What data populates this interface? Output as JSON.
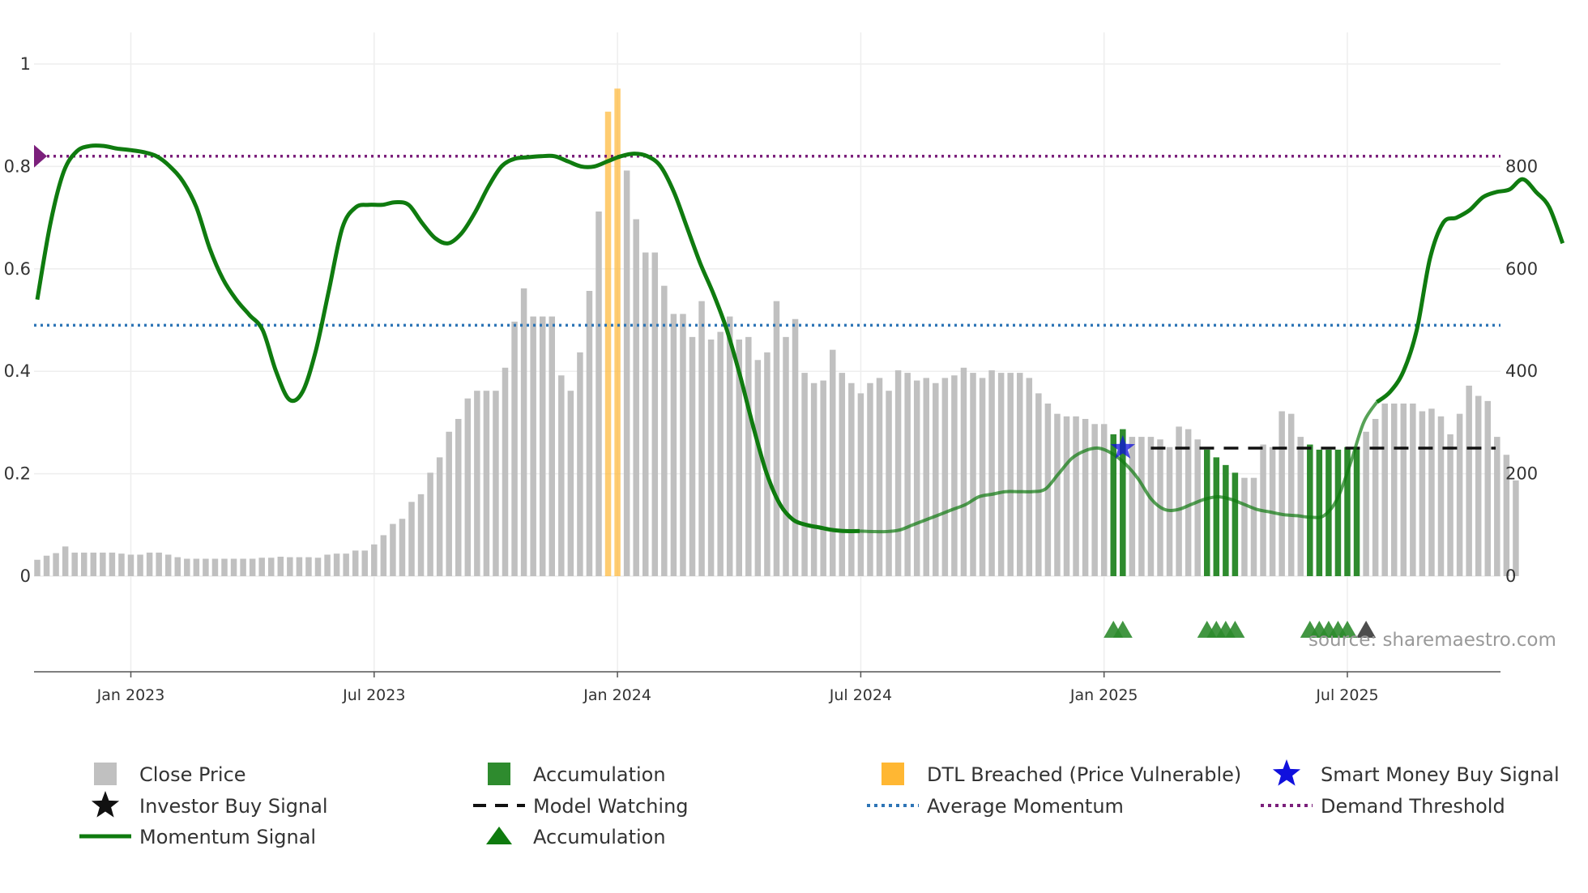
{
  "chart_data": {
    "type": "bar+line",
    "title": "",
    "source": "source: sharemaestro.com",
    "x_ticks": [
      "Jan 2023",
      "Jul 2023",
      "Jan 2024",
      "Jul 2024",
      "Jan 2025",
      "Jul 2025"
    ],
    "x_tick_weeks": [
      10,
      36,
      62,
      88,
      114,
      140
    ],
    "left_axis": {
      "range": [
        -0.19,
        1.0
      ],
      "ticks": [
        0,
        0.2,
        0.4,
        0.6,
        0.8,
        1
      ],
      "tick_labels": [
        "0",
        "0.2",
        "0.4",
        "0.6",
        "0.8",
        "1"
      ]
    },
    "right_axis": {
      "range": [
        -190,
        1000
      ],
      "ticks": [
        0,
        200,
        400,
        600,
        800
      ],
      "tick_labels": [
        "0",
        "200",
        "400",
        "600",
        "800"
      ]
    },
    "series": {
      "close_price": [
        32,
        40,
        45,
        58,
        46,
        46,
        46,
        46,
        46,
        44,
        42,
        42,
        46,
        46,
        42,
        37,
        34,
        34,
        34,
        34,
        34,
        34,
        34,
        34,
        36,
        36,
        38,
        37,
        37,
        37,
        36,
        42,
        44,
        44,
        50,
        50,
        62,
        80,
        102,
        112,
        145,
        160,
        202,
        232,
        282,
        307,
        347,
        362,
        362,
        362,
        407,
        497,
        562,
        507,
        507,
        507,
        392,
        362,
        437,
        557,
        712,
        907,
        952,
        792,
        697,
        632,
        632,
        567,
        512,
        512,
        467,
        537,
        462,
        477,
        507,
        462,
        467,
        422,
        437,
        537,
        467,
        502,
        397,
        377,
        382,
        442,
        397,
        377,
        357,
        377,
        387,
        362,
        402,
        397,
        382,
        387,
        377,
        387,
        392,
        407,
        397,
        387,
        402,
        397,
        397,
        397,
        387,
        357,
        337,
        317,
        312,
        312,
        307,
        297,
        297,
        277,
        287,
        272,
        272,
        272,
        267,
        252,
        292,
        287,
        267,
        247,
        232,
        217,
        202,
        192,
        192,
        257,
        252,
        322,
        317,
        272,
        257,
        247,
        247,
        247,
        252,
        252,
        282,
        307,
        337,
        337,
        337,
        337,
        322,
        327,
        312,
        277,
        317,
        372,
        352,
        342,
        272,
        237,
        187
      ],
      "accumulation_weeks": [
        115,
        116,
        125,
        126,
        127,
        128,
        136,
        137,
        138,
        139,
        140,
        141
      ],
      "dtl_breached_weeks": [
        61,
        62
      ],
      "momentum": [
        0.54,
        0.69,
        0.79,
        0.83,
        0.84,
        0.84,
        0.835,
        0.832,
        0.828,
        0.82,
        0.8,
        0.77,
        0.72,
        0.64,
        0.58,
        0.54,
        0.51,
        0.48,
        0.4,
        0.345,
        0.36,
        0.44,
        0.56,
        0.68,
        0.72,
        0.725,
        0.725,
        0.73,
        0.725,
        0.69,
        0.66,
        0.65,
        0.67,
        0.71,
        0.76,
        0.8,
        0.815,
        0.818,
        0.82,
        0.82,
        0.81,
        0.8,
        0.8,
        0.81,
        0.82,
        0.825,
        0.82,
        0.8,
        0.75,
        0.68,
        0.61,
        0.55,
        0.48,
        0.39,
        0.29,
        0.2,
        0.14,
        0.11,
        0.1,
        0.095,
        0.09,
        0.088,
        0.088,
        0.087,
        0.087,
        0.09,
        0.1,
        0.11,
        0.12,
        0.13,
        0.14,
        0.155,
        0.16,
        0.165,
        0.165,
        0.165,
        0.17,
        0.2,
        0.23,
        0.245,
        0.25,
        0.24,
        0.22,
        0.19,
        0.15,
        0.13,
        0.13,
        0.14,
        0.15,
        0.155,
        0.15,
        0.14,
        0.13,
        0.125,
        0.12,
        0.118,
        0.115,
        0.118,
        0.15,
        0.22,
        0.3,
        0.34,
        0.36,
        0.4,
        0.48,
        0.62,
        0.69,
        0.7,
        0.715,
        0.74,
        0.75,
        0.755,
        0.775,
        0.75,
        0.72,
        0.65
      ],
      "momentum_start_week": 0,
      "momentum_dim_range": [
        88,
        143
      ],
      "average_momentum": 0.49,
      "demand_threshold": 0.82,
      "model_watching_level": 0.25,
      "model_watching_start_week": 119,
      "smart_money_buy_signal": {
        "week": 116,
        "value": 0.25
      },
      "investor_buy_signal": {
        "week": 142
      },
      "accumulation_markers": [
        115,
        116,
        125,
        126,
        127,
        128,
        136,
        137,
        138,
        139,
        140
      ]
    },
    "colors": {
      "close_price": "#c0c0c0",
      "accumulation": "#2e8b2e",
      "dtl_breached": "#ffb733",
      "momentum": "#0f7b0f",
      "average_momentum": "#2e75b6",
      "demand_threshold": "#7b1f7b",
      "model_watching": "#111111",
      "smart_money": "#1010dd",
      "investor": "#111111",
      "axis": "#555555",
      "grid": "#eeeeee"
    }
  },
  "legend": [
    {
      "key": "close_price",
      "label": "Close Price",
      "symbol": "square-gray"
    },
    {
      "key": "accumulation_bar",
      "label": "Accumulation",
      "symbol": "square-green"
    },
    {
      "key": "dtl_breached",
      "label": "DTL Breached (Price Vulnerable)",
      "symbol": "square-orange"
    },
    {
      "key": "smart_money",
      "label": "Smart Money Buy Signal",
      "symbol": "star-blue"
    },
    {
      "key": "investor_buy",
      "label": "Investor Buy Signal",
      "symbol": "star-black"
    },
    {
      "key": "model_watching",
      "label": "Model Watching",
      "symbol": "dash-black"
    },
    {
      "key": "average_momentum",
      "label": "Average Momentum",
      "symbol": "dot-blue"
    },
    {
      "key": "demand_threshold",
      "label": "Demand Threshold",
      "symbol": "dot-purple"
    },
    {
      "key": "momentum",
      "label": "Momentum Signal",
      "symbol": "line-green"
    },
    {
      "key": "accumulation_marker",
      "label": "Accumulation",
      "symbol": "triangle-green"
    }
  ]
}
